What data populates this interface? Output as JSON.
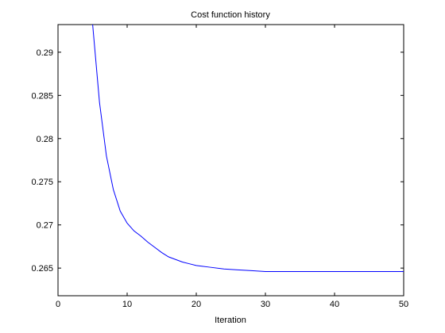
{
  "chart_data": {
    "type": "line",
    "title": "Cost function history",
    "xlabel": "Iteration",
    "ylabel": "",
    "xlim": [
      0,
      50
    ],
    "ylim": [
      0.2618,
      0.2932
    ],
    "grid": false,
    "legend": "none",
    "xticks": [
      0,
      10,
      20,
      30,
      40,
      50
    ],
    "xtick_labels": [
      "0",
      "10",
      "20",
      "30",
      "40",
      "50"
    ],
    "yticks": [
      0.265,
      0.27,
      0.275,
      0.28,
      0.285,
      0.29
    ],
    "ytick_labels": [
      "0.265",
      "0.27",
      "0.275",
      "0.28",
      "0.285",
      "0.29"
    ],
    "series": [
      {
        "color": "#0000ff",
        "x": [
          5,
          6,
          7,
          8,
          9,
          10,
          11,
          12,
          13,
          14,
          15,
          16,
          17,
          18,
          19,
          20,
          22,
          24,
          26,
          28,
          30,
          35,
          40,
          45,
          50
        ],
        "y": [
          0.2933,
          0.2842,
          0.278,
          0.2741,
          0.2716,
          0.2702,
          0.2693,
          0.2687,
          0.268,
          0.2674,
          0.2668,
          0.2663,
          0.266,
          0.2657,
          0.2655,
          0.2653,
          0.2651,
          0.2649,
          0.2648,
          0.2647,
          0.2646,
          0.2646,
          0.2646,
          0.2646,
          0.2646
        ]
      }
    ]
  }
}
